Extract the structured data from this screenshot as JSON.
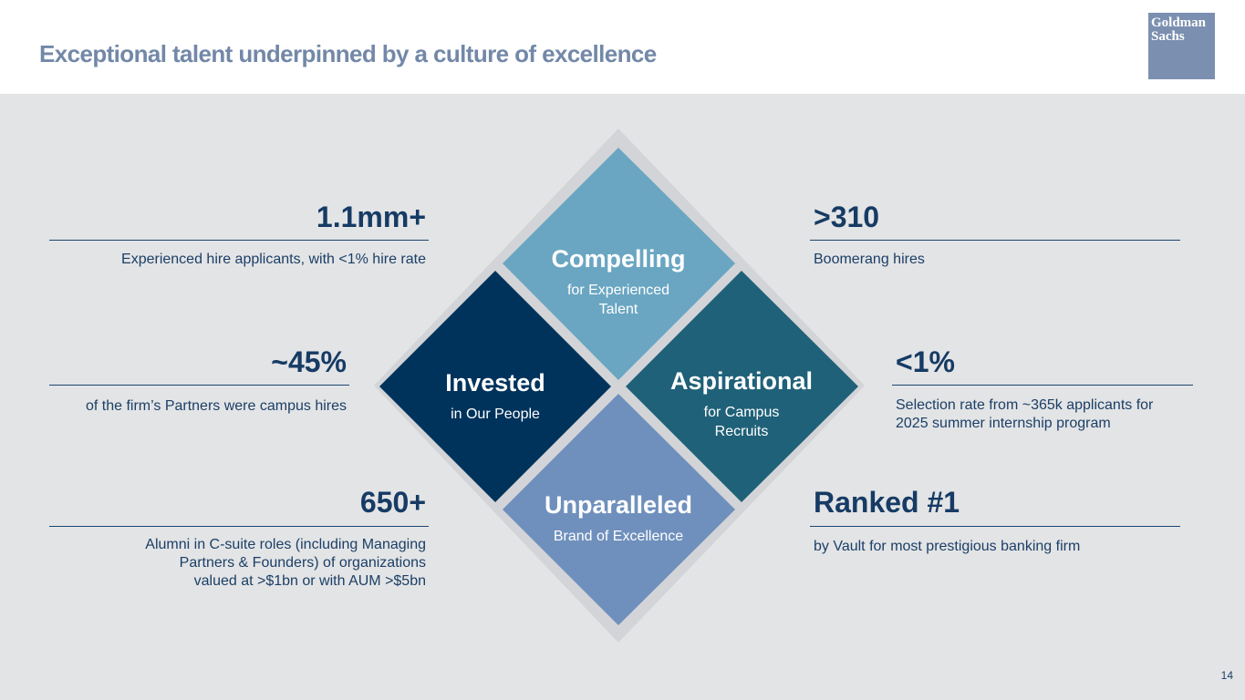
{
  "header": {
    "title": "Exceptional talent underpinned by a culture of excellence",
    "logo_line1": "Goldman",
    "logo_line2": "Sachs"
  },
  "stats": {
    "experienced": {
      "value": "1.1mm+",
      "desc": "Experienced hire applicants, with <1% hire rate"
    },
    "partners": {
      "value": "~45%",
      "desc": "of the firm’s Partners were campus hires"
    },
    "alumni": {
      "value": "650+",
      "desc_lines": [
        "Alumni in C-suite roles (including Managing",
        "Partners & Founders) of organizations",
        "valued at >$1bn or with AUM >$5bn"
      ]
    },
    "boomerang": {
      "value": ">310",
      "desc": "Boomerang hires"
    },
    "selection": {
      "value": "<1%",
      "desc_lines": [
        "Selection rate from ~365k applicants for",
        "2025 summer internship program"
      ]
    },
    "ranked": {
      "value": "Ranked #1",
      "desc": "by Vault for most prestigious banking firm"
    }
  },
  "diamond": {
    "compelling": {
      "title": "Compelling",
      "sub_lines": [
        "for Experienced",
        "Talent"
      ],
      "color": "#6aa6c2"
    },
    "invested": {
      "title": "Invested",
      "sub": "in Our People",
      "color": "#00335c"
    },
    "aspirational": {
      "title": "Aspirational",
      "sub_lines": [
        "for Campus",
        "Recruits"
      ],
      "color": "#1f6178"
    },
    "unparalleled": {
      "title": "Unparalleled",
      "sub": "Brand of Excellence",
      "color": "#6f90bd"
    },
    "frame_color": "#d3d4d7"
  },
  "footer": {
    "page_number": "14"
  }
}
